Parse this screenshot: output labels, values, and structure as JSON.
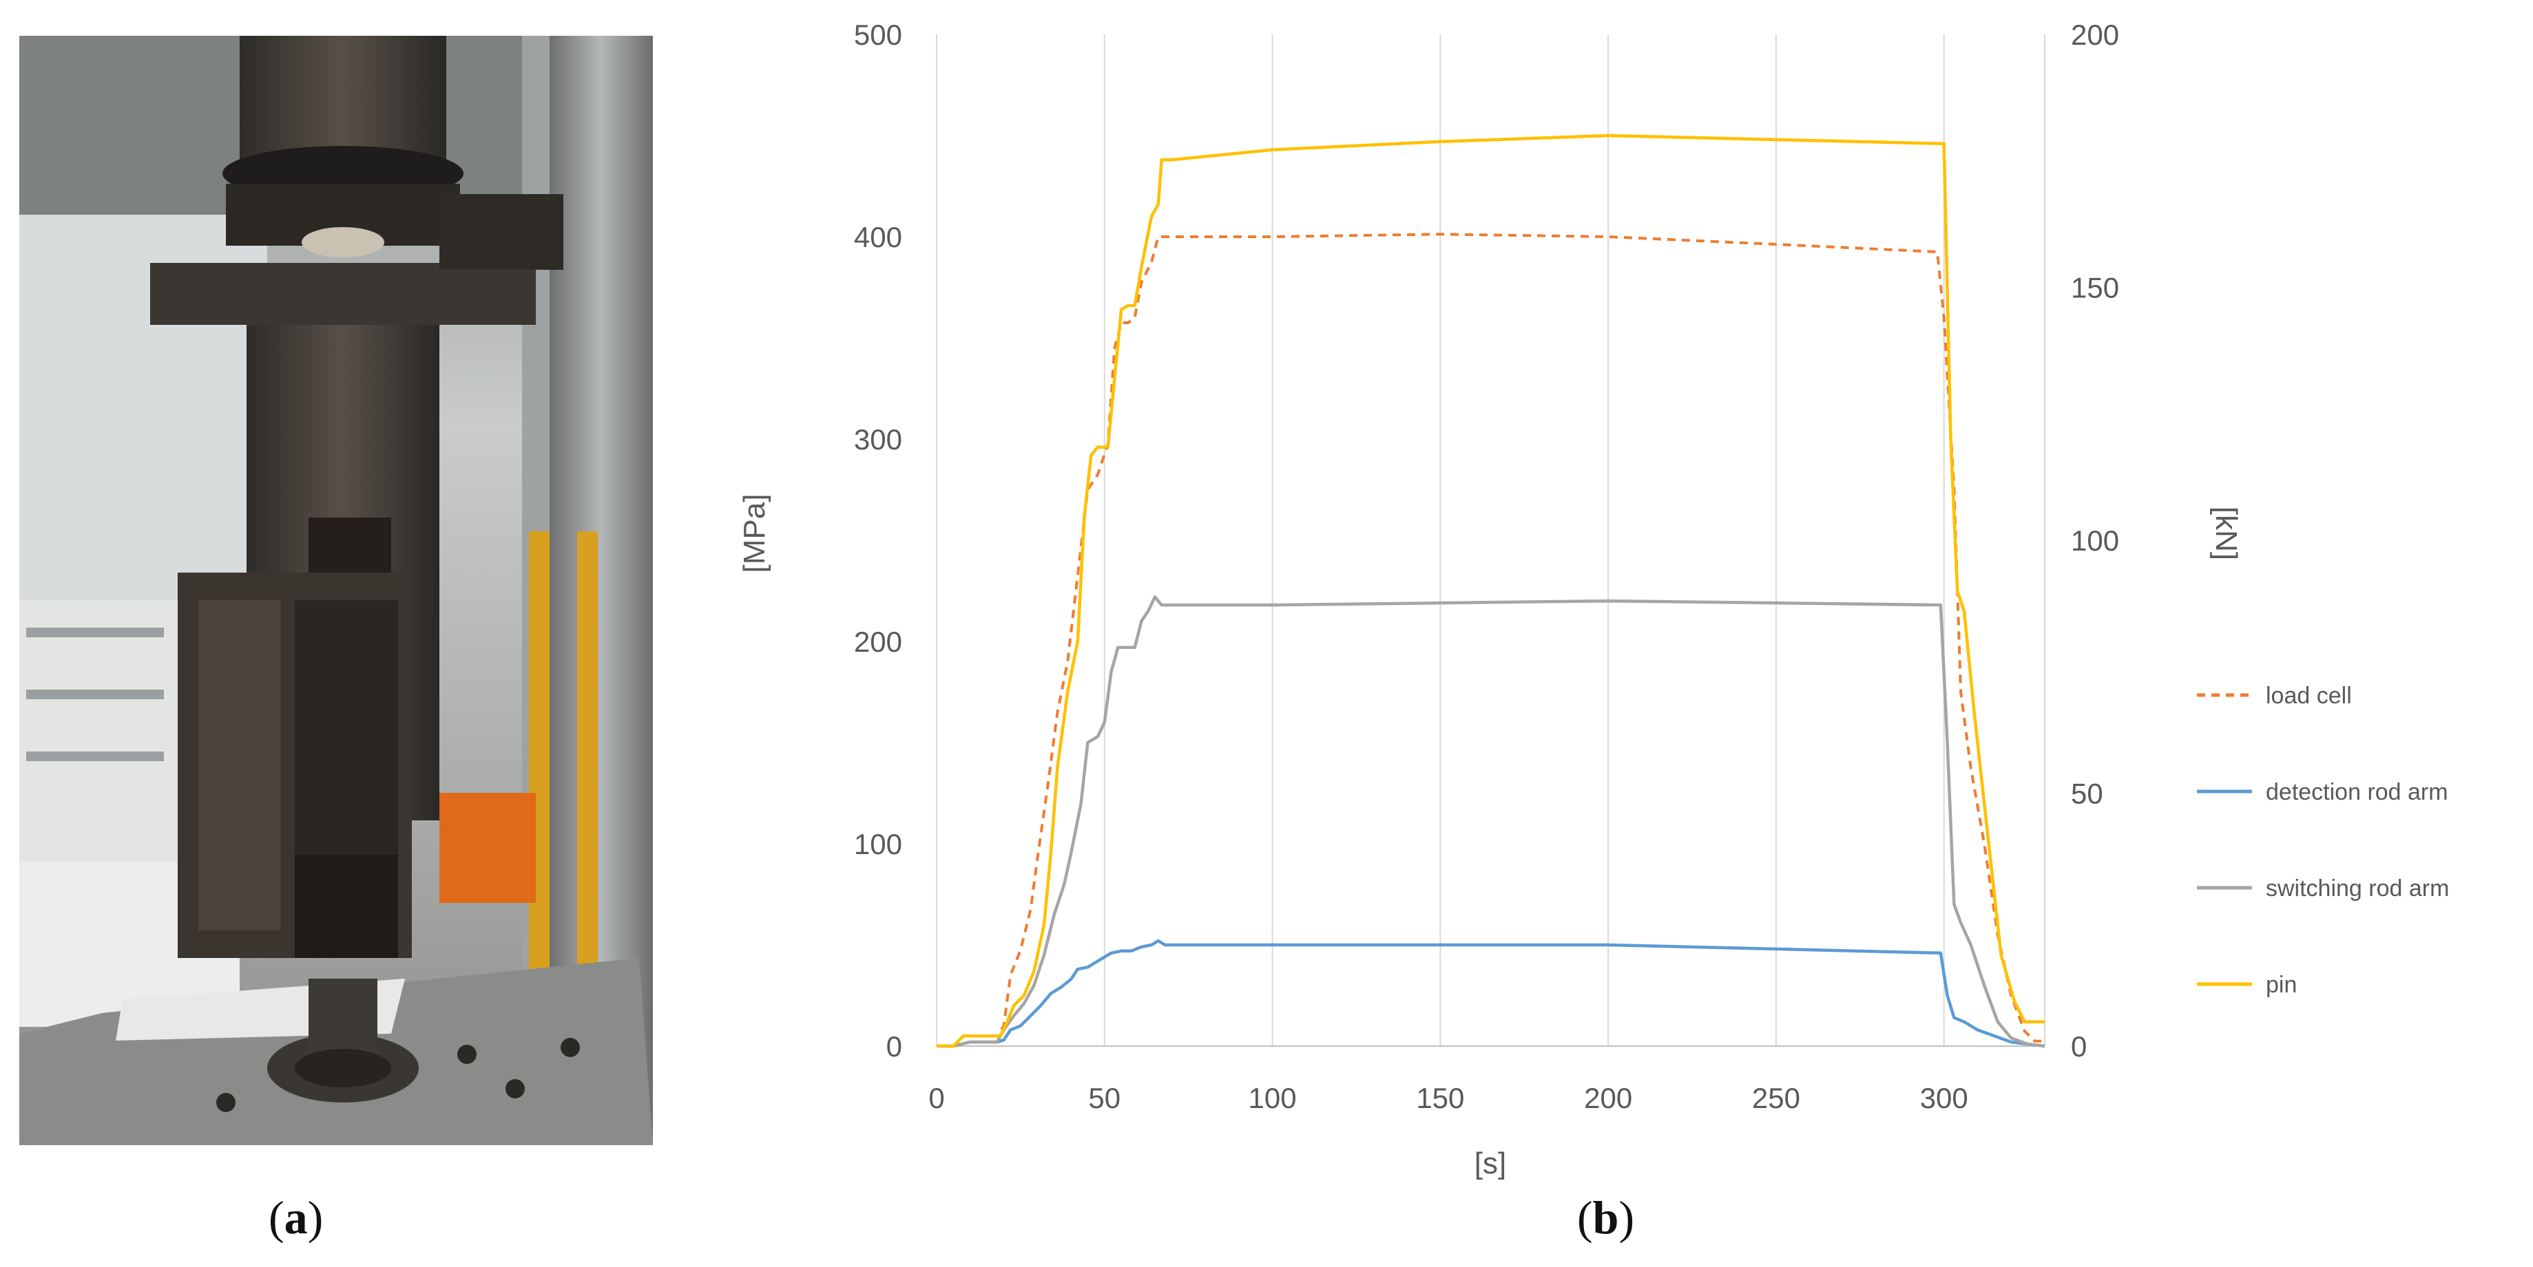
{
  "panel_a": {
    "caption_letter": "a",
    "photo_icon": "hydraulic-test-press-photo"
  },
  "panel_b": {
    "caption_letter": "b"
  },
  "chart_data": {
    "type": "line",
    "xlabel": "[s]",
    "ylabel": "[MPa]",
    "y2label": "[kN]",
    "xlim": [
      0,
      330
    ],
    "ylim": [
      0,
      500
    ],
    "y2lim": [
      0,
      200
    ],
    "x_ticks": [
      0,
      50,
      100,
      150,
      200,
      250,
      300
    ],
    "y_ticks": [
      0,
      100,
      200,
      300,
      400,
      500
    ],
    "y2_ticks": [
      0,
      50,
      100,
      150,
      200
    ],
    "grid": "vertical",
    "legend_position": "right",
    "series": [
      {
        "name": "load cell",
        "axis": "right",
        "color": "#ED7D31",
        "dash": true,
        "points": [
          [
            0,
            0
          ],
          [
            5,
            0
          ],
          [
            8,
            2
          ],
          [
            12,
            2
          ],
          [
            18,
            2
          ],
          [
            20,
            4
          ],
          [
            22,
            14
          ],
          [
            25,
            19
          ],
          [
            28,
            27
          ],
          [
            30,
            37
          ],
          [
            33,
            51
          ],
          [
            36,
            66
          ],
          [
            39,
            76
          ],
          [
            42,
            93
          ],
          [
            45,
            110
          ],
          [
            48,
            113
          ],
          [
            51,
            119
          ],
          [
            53,
            138
          ],
          [
            55,
            143
          ],
          [
            57,
            143
          ],
          [
            59,
            144
          ],
          [
            61,
            151
          ],
          [
            64,
            155
          ],
          [
            66,
            160
          ],
          [
            70,
            160
          ],
          [
            100,
            160
          ],
          [
            150,
            160.5
          ],
          [
            200,
            160
          ],
          [
            250,
            158.5
          ],
          [
            298,
            157
          ],
          [
            300,
            144
          ],
          [
            303,
            110
          ],
          [
            305,
            70
          ],
          [
            308,
            55
          ],
          [
            312,
            40
          ],
          [
            316,
            22
          ],
          [
            320,
            10
          ],
          [
            324,
            3
          ],
          [
            327,
            1
          ],
          [
            330,
            1
          ]
        ]
      },
      {
        "name": "detection rod arm",
        "axis": "left",
        "color": "#5B9BD5",
        "dash": false,
        "points": [
          [
            0,
            0
          ],
          [
            5,
            0
          ],
          [
            10,
            2
          ],
          [
            18,
            2
          ],
          [
            20,
            3
          ],
          [
            22,
            8
          ],
          [
            25,
            10
          ],
          [
            28,
            15
          ],
          [
            31,
            20
          ],
          [
            34,
            26
          ],
          [
            37,
            29
          ],
          [
            40,
            33
          ],
          [
            42,
            38
          ],
          [
            45,
            39
          ],
          [
            48,
            42
          ],
          [
            52,
            46
          ],
          [
            55,
            47
          ],
          [
            58,
            47
          ],
          [
            61,
            49
          ],
          [
            64,
            50
          ],
          [
            66,
            52
          ],
          [
            68,
            50
          ],
          [
            100,
            50
          ],
          [
            150,
            50
          ],
          [
            200,
            50
          ],
          [
            250,
            48
          ],
          [
            299,
            46
          ],
          [
            301,
            25
          ],
          [
            303,
            14
          ],
          [
            306,
            12
          ],
          [
            310,
            8
          ],
          [
            315,
            5
          ],
          [
            320,
            2
          ],
          [
            325,
            1
          ],
          [
            330,
            0
          ]
        ]
      },
      {
        "name": "switching rod arm",
        "axis": "left",
        "color": "#A5A5A5",
        "dash": false,
        "points": [
          [
            0,
            0
          ],
          [
            5,
            0
          ],
          [
            10,
            2
          ],
          [
            18,
            2
          ],
          [
            20,
            8
          ],
          [
            23,
            15
          ],
          [
            26,
            21
          ],
          [
            29,
            30
          ],
          [
            32,
            45
          ],
          [
            35,
            65
          ],
          [
            38,
            80
          ],
          [
            40,
            95
          ],
          [
            43,
            120
          ],
          [
            45,
            150
          ],
          [
            48,
            153
          ],
          [
            50,
            160
          ],
          [
            52,
            185
          ],
          [
            54,
            197
          ],
          [
            57,
            197
          ],
          [
            59,
            197
          ],
          [
            61,
            210
          ],
          [
            63,
            215
          ],
          [
            65,
            222
          ],
          [
            67,
            218
          ],
          [
            100,
            218
          ],
          [
            150,
            219
          ],
          [
            200,
            220
          ],
          [
            250,
            219
          ],
          [
            299,
            218
          ],
          [
            301,
            150
          ],
          [
            303,
            70
          ],
          [
            305,
            61
          ],
          [
            308,
            50
          ],
          [
            312,
            30
          ],
          [
            316,
            12
          ],
          [
            320,
            4
          ],
          [
            325,
            1
          ],
          [
            330,
            0
          ]
        ]
      },
      {
        "name": "pin",
        "axis": "left",
        "color": "#FFC000",
        "dash": false,
        "points": [
          [
            0,
            0
          ],
          [
            5,
            0
          ],
          [
            8,
            5
          ],
          [
            13,
            5
          ],
          [
            19,
            5
          ],
          [
            21,
            12
          ],
          [
            23,
            20
          ],
          [
            26,
            25
          ],
          [
            29,
            37
          ],
          [
            32,
            60
          ],
          [
            34,
            95
          ],
          [
            36,
            138
          ],
          [
            39,
            175
          ],
          [
            42,
            200
          ],
          [
            44,
            262
          ],
          [
            46,
            292
          ],
          [
            48,
            296
          ],
          [
            51,
            296
          ],
          [
            53,
            330
          ],
          [
            55,
            364
          ],
          [
            57,
            366
          ],
          [
            59,
            366
          ],
          [
            61,
            385
          ],
          [
            64,
            410
          ],
          [
            66,
            416
          ],
          [
            67,
            438
          ],
          [
            70,
            438
          ],
          [
            100,
            443
          ],
          [
            150,
            447
          ],
          [
            200,
            450
          ],
          [
            250,
            448
          ],
          [
            300,
            446
          ],
          [
            302,
            300
          ],
          [
            304,
            225
          ],
          [
            306,
            215
          ],
          [
            309,
            165
          ],
          [
            313,
            105
          ],
          [
            317,
            45
          ],
          [
            321,
            22
          ],
          [
            324,
            12
          ],
          [
            330,
            12
          ]
        ]
      }
    ]
  }
}
